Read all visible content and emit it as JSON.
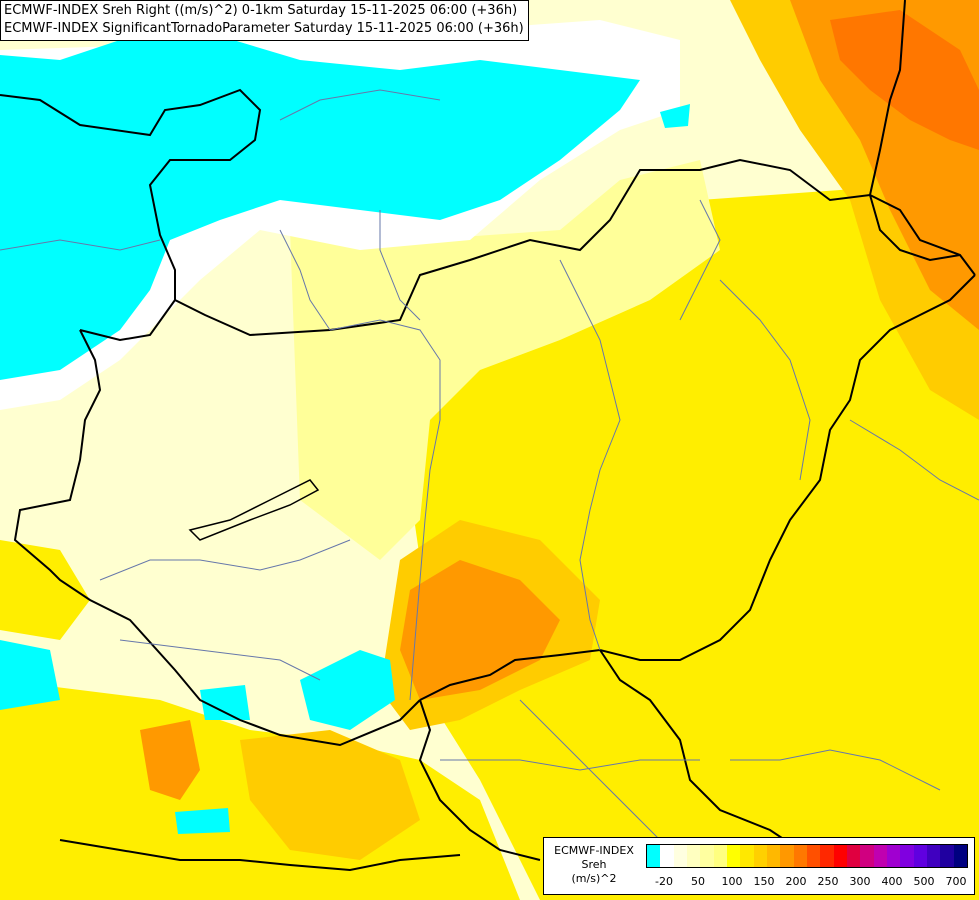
{
  "title": {
    "line1": "ECMWF-INDEX Sreh Right ((m/s)^2) 0-1km Saturday 15-11-2025 06:00 (+36h)",
    "line2": "ECMWF-INDEX SignificantTornadoParameter Saturday 15-11-2025 06:00 (+36h)"
  },
  "legend": {
    "source": "ECMWF-INDEX",
    "variable": "Sreh",
    "unit": "(m/s)^2",
    "colors": [
      "#00ffff",
      "#ffffff",
      "#ffffe0",
      "#ffffc0",
      "#ffffa0",
      "#ffff80",
      "#ffff00",
      "#ffe800",
      "#ffd000",
      "#ffb800",
      "#ff9800",
      "#ff7800",
      "#ff5000",
      "#ff2800",
      "#ff0000",
      "#e00040",
      "#d00080",
      "#c000b0",
      "#a000d0",
      "#8000e0",
      "#6000e0",
      "#4000c0",
      "#2000a0",
      "#000080"
    ],
    "ticks": [
      "-20",
      "50",
      "100",
      "150",
      "200",
      "250",
      "300",
      "400",
      "500",
      "700"
    ]
  },
  "colors": {
    "cyan_area": "#00ffff",
    "white_area": "#ffffff",
    "pale_yellow": "#ffffd0",
    "light_yellow": "#ffff99",
    "yellow": "#ffee00",
    "gold": "#ffcc00",
    "orange": "#ff9900",
    "dark_orange": "#ff7700",
    "border": "#000000",
    "river": "#6677aa"
  }
}
